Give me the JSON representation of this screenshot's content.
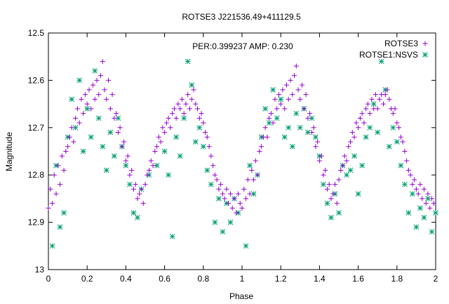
{
  "chart_data": {
    "type": "scatter",
    "title": "ROTSE3 J221536.49+411129.5",
    "annotation": "PER:0.399237 AMP: 0.230",
    "xlabel": "Phase",
    "ylabel": "Magnitude",
    "xlim": [
      0,
      2
    ],
    "ylim": [
      12.5,
      13
    ],
    "y_inverted": true,
    "grid": false,
    "legend_position": "top-right",
    "xticks": [
      "0",
      "0.2",
      "0.4",
      "0.6",
      "0.8",
      "1",
      "1.2",
      "1.4",
      "1.6",
      "1.8",
      "2"
    ],
    "yticks": [
      "12.5",
      "12.6",
      "12.7",
      "12.8",
      "12.9",
      "13"
    ],
    "series": [
      {
        "name": "ROTSE3",
        "marker": "plus",
        "color": "#9400d3",
        "points": [
          [
            0.0,
            12.87
          ],
          [
            0.01,
            12.83
          ],
          [
            0.02,
            12.86
          ],
          [
            0.03,
            12.8
          ],
          [
            0.04,
            12.84
          ],
          [
            0.05,
            12.78
          ],
          [
            0.06,
            12.82
          ],
          [
            0.07,
            12.76
          ],
          [
            0.08,
            12.79
          ],
          [
            0.09,
            12.75
          ],
          [
            0.1,
            12.74
          ],
          [
            0.11,
            12.72
          ],
          [
            0.12,
            12.7
          ],
          [
            0.13,
            12.73
          ],
          [
            0.14,
            12.68
          ],
          [
            0.15,
            12.66
          ],
          [
            0.16,
            12.69
          ],
          [
            0.17,
            12.64
          ],
          [
            0.18,
            12.67
          ],
          [
            0.19,
            12.63
          ],
          [
            0.2,
            12.65
          ],
          [
            0.21,
            12.62
          ],
          [
            0.22,
            12.66
          ],
          [
            0.23,
            12.61
          ],
          [
            0.24,
            12.64
          ],
          [
            0.25,
            12.6
          ],
          [
            0.26,
            12.63
          ],
          [
            0.27,
            12.59
          ],
          [
            0.28,
            12.56
          ],
          [
            0.29,
            12.62
          ],
          [
            0.3,
            12.64
          ],
          [
            0.31,
            12.6
          ],
          [
            0.32,
            12.66
          ],
          [
            0.33,
            12.63
          ],
          [
            0.34,
            12.68
          ],
          [
            0.35,
            12.67
          ],
          [
            0.36,
            12.71
          ],
          [
            0.37,
            12.7
          ],
          [
            0.38,
            12.74
          ],
          [
            0.39,
            12.73
          ],
          [
            0.4,
            12.77
          ],
          [
            0.41,
            12.76
          ],
          [
            0.42,
            12.8
          ],
          [
            0.43,
            12.79
          ],
          [
            0.44,
            12.83
          ],
          [
            0.45,
            12.82
          ],
          [
            0.46,
            12.85
          ],
          [
            0.47,
            12.84
          ],
          [
            0.48,
            12.83
          ],
          [
            0.49,
            12.86
          ],
          [
            0.5,
            12.82
          ],
          [
            0.51,
            12.8
          ],
          [
            0.52,
            12.79
          ],
          [
            0.53,
            12.77
          ],
          [
            0.54,
            12.78
          ],
          [
            0.55,
            12.75
          ],
          [
            0.56,
            12.74
          ],
          [
            0.57,
            12.72
          ],
          [
            0.58,
            12.73
          ],
          [
            0.59,
            12.7
          ],
          [
            0.6,
            12.71
          ],
          [
            0.61,
            12.69
          ],
          [
            0.62,
            12.68
          ],
          [
            0.63,
            12.7
          ],
          [
            0.64,
            12.67
          ],
          [
            0.65,
            12.66
          ],
          [
            0.66,
            12.68
          ],
          [
            0.67,
            12.65
          ],
          [
            0.68,
            12.66
          ],
          [
            0.69,
            12.64
          ],
          [
            0.7,
            12.67
          ],
          [
            0.71,
            12.65
          ],
          [
            0.72,
            12.63
          ],
          [
            0.73,
            12.66
          ],
          [
            0.74,
            12.64
          ],
          [
            0.75,
            12.62
          ],
          [
            0.76,
            12.65
          ],
          [
            0.77,
            12.66
          ],
          [
            0.78,
            12.68
          ],
          [
            0.79,
            12.67
          ],
          [
            0.8,
            12.69
          ],
          [
            0.81,
            12.71
          ],
          [
            0.82,
            12.72
          ],
          [
            0.83,
            12.74
          ],
          [
            0.84,
            12.76
          ],
          [
            0.85,
            12.78
          ],
          [
            0.86,
            12.8
          ],
          [
            0.87,
            12.81
          ],
          [
            0.88,
            12.83
          ],
          [
            0.89,
            12.82
          ],
          [
            0.9,
            12.84
          ],
          [
            0.91,
            12.85
          ],
          [
            0.92,
            12.83
          ],
          [
            0.93,
            12.86
          ],
          [
            0.94,
            12.84
          ],
          [
            0.95,
            12.87
          ],
          [
            0.96,
            12.85
          ],
          [
            0.97,
            12.88
          ],
          [
            0.98,
            12.84
          ],
          [
            0.99,
            12.86
          ],
          [
            1.0,
            12.87
          ],
          [
            1.01,
            12.83
          ],
          [
            1.02,
            12.85
          ],
          [
            1.03,
            12.81
          ],
          [
            1.04,
            12.84
          ],
          [
            1.05,
            12.79
          ],
          [
            1.06,
            12.81
          ],
          [
            1.07,
            12.77
          ],
          [
            1.08,
            12.8
          ],
          [
            1.09,
            12.75
          ],
          [
            1.1,
            12.74
          ],
          [
            1.11,
            12.72
          ],
          [
            1.12,
            12.7
          ],
          [
            1.13,
            12.72
          ],
          [
            1.14,
            12.68
          ],
          [
            1.15,
            12.67
          ],
          [
            1.16,
            12.69
          ],
          [
            1.17,
            12.64
          ],
          [
            1.18,
            12.66
          ],
          [
            1.19,
            12.63
          ],
          [
            1.2,
            12.65
          ],
          [
            1.21,
            12.62
          ],
          [
            1.22,
            12.66
          ],
          [
            1.23,
            12.61
          ],
          [
            1.24,
            12.64
          ],
          [
            1.25,
            12.6
          ],
          [
            1.26,
            12.63
          ],
          [
            1.27,
            12.59
          ],
          [
            1.28,
            12.57
          ],
          [
            1.29,
            12.62
          ],
          [
            1.3,
            12.64
          ],
          [
            1.31,
            12.61
          ],
          [
            1.32,
            12.66
          ],
          [
            1.33,
            12.63
          ],
          [
            1.34,
            12.68
          ],
          [
            1.35,
            12.67
          ],
          [
            1.36,
            12.71
          ],
          [
            1.37,
            12.7
          ],
          [
            1.38,
            12.74
          ],
          [
            1.39,
            12.73
          ],
          [
            1.4,
            12.77
          ],
          [
            1.41,
            12.76
          ],
          [
            1.42,
            12.8
          ],
          [
            1.43,
            12.79
          ],
          [
            1.44,
            12.83
          ],
          [
            1.45,
            12.82
          ],
          [
            1.46,
            12.85
          ],
          [
            1.47,
            12.84
          ],
          [
            1.48,
            12.82
          ],
          [
            1.49,
            12.86
          ],
          [
            1.5,
            12.81
          ],
          [
            1.51,
            12.79
          ],
          [
            1.52,
            12.78
          ],
          [
            1.53,
            12.76
          ],
          [
            1.54,
            12.77
          ],
          [
            1.55,
            12.74
          ],
          [
            1.56,
            12.73
          ],
          [
            1.57,
            12.71
          ],
          [
            1.58,
            12.72
          ],
          [
            1.59,
            12.69
          ],
          [
            1.6,
            12.7
          ],
          [
            1.61,
            12.68
          ],
          [
            1.62,
            12.67
          ],
          [
            1.63,
            12.69
          ],
          [
            1.64,
            12.66
          ],
          [
            1.65,
            12.65
          ],
          [
            1.66,
            12.67
          ],
          [
            1.67,
            12.64
          ],
          [
            1.68,
            12.66
          ],
          [
            1.69,
            12.63
          ],
          [
            1.7,
            12.66
          ],
          [
            1.71,
            12.64
          ],
          [
            1.72,
            12.63
          ],
          [
            1.73,
            12.65
          ],
          [
            1.74,
            12.63
          ],
          [
            1.75,
            12.62
          ],
          [
            1.76,
            12.64
          ],
          [
            1.77,
            12.66
          ],
          [
            1.78,
            12.67
          ],
          [
            1.79,
            12.66
          ],
          [
            1.8,
            12.69
          ],
          [
            1.81,
            12.7
          ],
          [
            1.82,
            12.72
          ],
          [
            1.83,
            12.73
          ],
          [
            1.84,
            12.75
          ],
          [
            1.85,
            12.77
          ],
          [
            1.86,
            12.79
          ],
          [
            1.87,
            12.8
          ],
          [
            1.88,
            12.82
          ],
          [
            1.89,
            12.81
          ],
          [
            1.9,
            12.83
          ],
          [
            1.91,
            12.84
          ],
          [
            1.92,
            12.82
          ],
          [
            1.93,
            12.85
          ],
          [
            1.94,
            12.83
          ],
          [
            1.95,
            12.86
          ],
          [
            1.96,
            12.84
          ],
          [
            1.97,
            12.87
          ],
          [
            1.98,
            12.85
          ],
          [
            1.99,
            12.86
          ]
        ]
      },
      {
        "name": "ROTSE1:NSVS",
        "marker": "star",
        "color": "#009e73",
        "points": [
          [
            0.02,
            12.95
          ],
          [
            0.04,
            12.78
          ],
          [
            0.06,
            12.91
          ],
          [
            0.08,
            12.88
          ],
          [
            0.1,
            12.72
          ],
          [
            0.12,
            12.64
          ],
          [
            0.14,
            12.7
          ],
          [
            0.16,
            12.6
          ],
          [
            0.18,
            12.75
          ],
          [
            0.2,
            12.66
          ],
          [
            0.22,
            12.72
          ],
          [
            0.24,
            12.58
          ],
          [
            0.26,
            12.68
          ],
          [
            0.28,
            12.74
          ],
          [
            0.3,
            12.79
          ],
          [
            0.32,
            12.71
          ],
          [
            0.34,
            12.76
          ],
          [
            0.36,
            12.68
          ],
          [
            0.38,
            12.74
          ],
          [
            0.4,
            12.78
          ],
          [
            0.42,
            12.82
          ],
          [
            0.44,
            12.88
          ],
          [
            0.46,
            12.89
          ],
          [
            0.48,
            12.83
          ],
          [
            0.52,
            12.8
          ],
          [
            0.56,
            12.78
          ],
          [
            0.6,
            12.75
          ],
          [
            0.62,
            12.8
          ],
          [
            0.64,
            12.93
          ],
          [
            0.66,
            12.72
          ],
          [
            0.68,
            12.76
          ],
          [
            0.7,
            12.68
          ],
          [
            0.72,
            12.56
          ],
          [
            0.74,
            12.61
          ],
          [
            0.76,
            12.73
          ],
          [
            0.78,
            12.7
          ],
          [
            0.8,
            12.74
          ],
          [
            0.82,
            12.79
          ],
          [
            0.84,
            12.82
          ],
          [
            0.86,
            12.9
          ],
          [
            0.88,
            12.85
          ],
          [
            0.9,
            12.92
          ],
          [
            0.92,
            12.86
          ],
          [
            0.94,
            12.9
          ],
          [
            0.96,
            12.85
          ],
          [
            0.98,
            12.88
          ],
          [
            1.02,
            12.95
          ],
          [
            1.04,
            12.78
          ],
          [
            1.06,
            12.84
          ],
          [
            1.08,
            12.8
          ],
          [
            1.1,
            12.72
          ],
          [
            1.12,
            12.66
          ],
          [
            1.14,
            12.69
          ],
          [
            1.16,
            12.62
          ],
          [
            1.18,
            12.68
          ],
          [
            1.2,
            12.64
          ],
          [
            1.22,
            12.72
          ],
          [
            1.24,
            12.7
          ],
          [
            1.26,
            12.74
          ],
          [
            1.28,
            12.67
          ],
          [
            1.3,
            12.7
          ],
          [
            1.32,
            12.66
          ],
          [
            1.34,
            12.71
          ],
          [
            1.36,
            12.68
          ],
          [
            1.38,
            12.72
          ],
          [
            1.4,
            12.76
          ],
          [
            1.42,
            12.82
          ],
          [
            1.44,
            12.86
          ],
          [
            1.46,
            12.89
          ],
          [
            1.48,
            12.84
          ],
          [
            1.5,
            12.88
          ],
          [
            1.52,
            12.78
          ],
          [
            1.54,
            12.8
          ],
          [
            1.56,
            12.79
          ],
          [
            1.58,
            12.76
          ],
          [
            1.6,
            12.84
          ],
          [
            1.62,
            12.78
          ],
          [
            1.64,
            12.72
          ],
          [
            1.66,
            12.7
          ],
          [
            1.68,
            12.65
          ],
          [
            1.7,
            12.71
          ],
          [
            1.72,
            12.56
          ],
          [
            1.74,
            12.62
          ],
          [
            1.76,
            12.74
          ],
          [
            1.78,
            12.7
          ],
          [
            1.8,
            12.73
          ],
          [
            1.82,
            12.78
          ],
          [
            1.84,
            12.82
          ],
          [
            1.86,
            12.88
          ],
          [
            1.88,
            12.84
          ],
          [
            1.9,
            12.91
          ],
          [
            1.92,
            12.87
          ],
          [
            1.94,
            12.89
          ],
          [
            1.96,
            12.85
          ],
          [
            1.98,
            12.92
          ],
          [
            2.0,
            12.88
          ]
        ]
      }
    ]
  }
}
